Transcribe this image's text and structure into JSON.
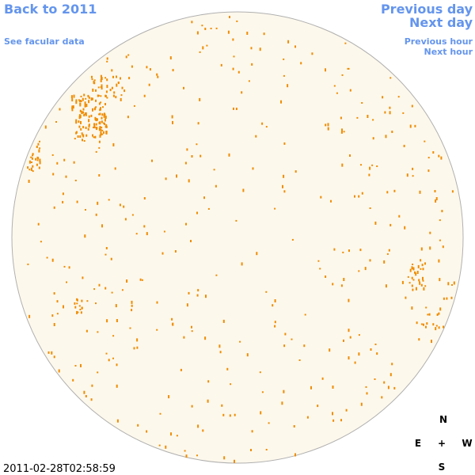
{
  "header": {
    "back_link": "Back to 2011",
    "facular_link": "See facular data"
  },
  "navigation": {
    "previous_day": "Previous day",
    "next_day": "Next day",
    "previous_hour": "Previous hour",
    "next_hour": "Next hour"
  },
  "timestamp": "2011-02-28T02:58:59",
  "compass": {
    "north": "N",
    "east": "E",
    "center": "+",
    "west": "W",
    "south": "S"
  }
}
